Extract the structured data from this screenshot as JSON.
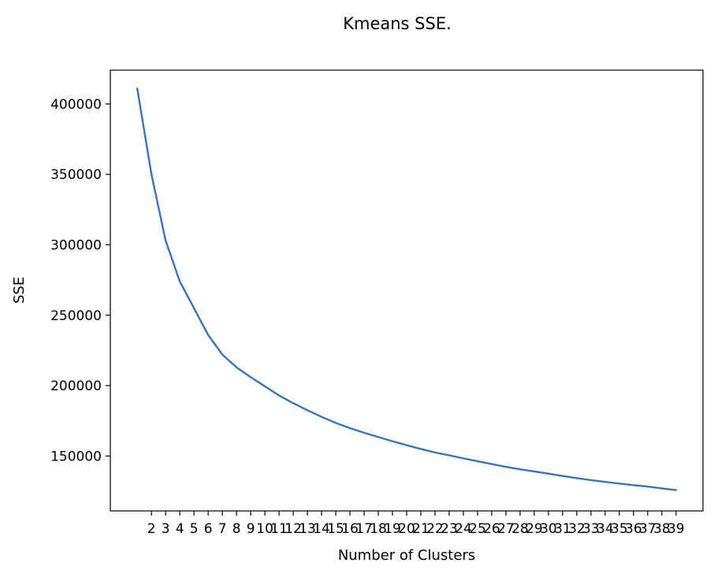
{
  "chart_data": {
    "type": "line",
    "title": "Kmeans SSE.",
    "xlabel": "Number of Clusters",
    "ylabel": "SSE",
    "x": [
      1,
      2,
      3,
      4,
      5,
      6,
      7,
      8,
      9,
      10,
      11,
      12,
      13,
      14,
      15,
      16,
      17,
      18,
      19,
      20,
      21,
      22,
      23,
      24,
      25,
      26,
      27,
      28,
      29,
      30,
      31,
      32,
      33,
      34,
      35,
      36,
      37,
      38,
      39
    ],
    "series": [
      {
        "values": [
          411000,
          350000,
          303000,
          274000,
          255000,
          236000,
          222000,
          213000,
          206000,
          199500,
          193000,
          187500,
          182500,
          177800,
          173500,
          169800,
          166500,
          163500,
          160500,
          157700,
          155000,
          152500,
          150500,
          148300,
          146300,
          144300,
          142300,
          140600,
          139000,
          137500,
          135800,
          134300,
          132900,
          131600,
          130400,
          129300,
          128300,
          127000,
          125800
        ],
        "color": "#3a74b4"
      }
    ],
    "xticks": [
      2,
      3,
      4,
      5,
      6,
      7,
      8,
      9,
      10,
      11,
      12,
      13,
      14,
      15,
      16,
      17,
      18,
      19,
      20,
      21,
      22,
      23,
      24,
      25,
      26,
      27,
      28,
      29,
      30,
      31,
      32,
      33,
      34,
      35,
      36,
      37,
      38,
      39
    ],
    "xtick_labels": [
      "2",
      "3",
      "4",
      "5",
      "6",
      "7",
      "8",
      "9",
      "10",
      "11",
      "12",
      "13",
      "14",
      "15",
      "16",
      "17",
      "18",
      "19",
      "20",
      "21",
      "22",
      "23",
      "24",
      "25",
      "26",
      "27",
      "28",
      "29",
      "30",
      "31",
      "32",
      "33",
      "34",
      "35",
      "36",
      "37",
      "38",
      "39"
    ],
    "yticks": [
      150000,
      200000,
      250000,
      300000,
      350000,
      400000
    ],
    "ytick_labels": [
      "150000",
      "200000",
      "250000",
      "300000",
      "350000",
      "400000"
    ],
    "xlim": [
      -0.9,
      40.9
    ],
    "ylim": [
      111000,
      424000
    ],
    "grid": false,
    "legend": false
  }
}
